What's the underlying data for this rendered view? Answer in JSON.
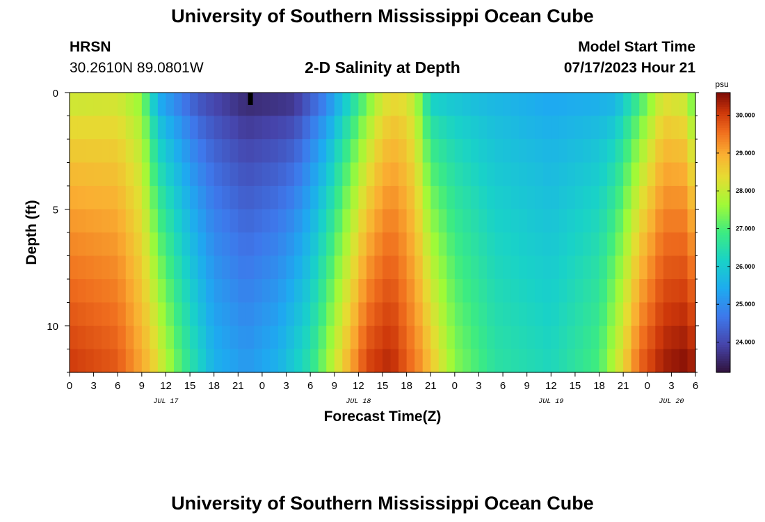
{
  "header": {
    "title": "University of Southern Mississippi Ocean Cube",
    "station": "HRSN",
    "coords": "30.2610N  89.0801W",
    "plot_title": "2-D Salinity at Depth",
    "model_start_label": "Model Start Time",
    "model_start_value": "07/17/2023 Hour 21"
  },
  "footer": {
    "title": "University of Southern Mississippi Ocean Cube"
  },
  "colors": {
    "background": "#ffffff",
    "axis": "#000000",
    "marker": "#000000"
  },
  "chart_data": {
    "type": "heatmap",
    "title": "2-D Salinity at Depth",
    "xlabel": "Forecast Time(Z)",
    "ylabel": "Depth (ft)",
    "x_range_hours": [
      0,
      78
    ],
    "x_ticks": [
      0,
      3,
      6,
      9,
      12,
      15,
      18,
      21,
      24,
      27,
      30,
      33,
      36,
      39,
      42,
      45,
      48,
      51,
      54,
      57,
      60,
      63,
      66,
      69,
      72,
      75,
      78
    ],
    "x_tick_labels": [
      "0",
      "3",
      "6",
      "9",
      "12",
      "15",
      "18",
      "21",
      "0",
      "3",
      "6",
      "9",
      "12",
      "15",
      "18",
      "21",
      "0",
      "3",
      "6",
      "9",
      "12",
      "15",
      "18",
      "21",
      "0",
      "3",
      "6"
    ],
    "date_labels": [
      {
        "label": "JUL 17",
        "hour": 12
      },
      {
        "label": "JUL 18",
        "hour": 36
      },
      {
        "label": "JUL 19",
        "hour": 60
      },
      {
        "label": "JUL 20",
        "hour": 75
      }
    ],
    "y_range_ft": [
      0,
      12
    ],
    "y_ticks": [
      0,
      5,
      10
    ],
    "depth_levels": [
      0.5,
      1.5,
      2.5,
      3.5,
      4.5,
      5.5,
      6.5,
      7.5,
      8.5,
      9.5,
      10.5,
      11.5
    ],
    "time_step_hours": 1,
    "salinity_model": {
      "description": "Salinity (psu) by forecast hour and depth; surface ~pattern with fresh intrusions centered near hour 23 and hour 59",
      "keyframes_surface": [
        [
          0,
          27.9
        ],
        [
          6,
          28.0
        ],
        [
          9,
          27.4
        ],
        [
          11,
          25.2
        ],
        [
          16,
          24.0
        ],
        [
          22,
          23.4
        ],
        [
          28,
          23.5
        ],
        [
          32,
          24.6
        ],
        [
          36,
          26.5
        ],
        [
          39,
          28.0
        ],
        [
          41,
          28.3
        ],
        [
          43,
          27.8
        ],
        [
          45,
          25.9
        ],
        [
          52,
          25.6
        ],
        [
          60,
          25.3
        ],
        [
          68,
          25.4
        ],
        [
          71,
          26.6
        ],
        [
          74,
          28.1
        ],
        [
          77,
          27.8
        ],
        [
          78,
          26.5
        ]
      ],
      "keyframes_bottom": [
        [
          0,
          30.1
        ],
        [
          6,
          29.8
        ],
        [
          10,
          28.8
        ],
        [
          14,
          27.0
        ],
        [
          18,
          25.6
        ],
        [
          22,
          25.2
        ],
        [
          26,
          25.6
        ],
        [
          30,
          26.6
        ],
        [
          34,
          28.6
        ],
        [
          37,
          30.0
        ],
        [
          40,
          30.3
        ],
        [
          44,
          29.2
        ],
        [
          48,
          27.5
        ],
        [
          53,
          26.6
        ],
        [
          60,
          26.3
        ],
        [
          66,
          27.0
        ],
        [
          69,
          28.5
        ],
        [
          71,
          29.7
        ],
        [
          74,
          30.4
        ],
        [
          77,
          30.6
        ],
        [
          78,
          30.3
        ]
      ]
    },
    "current_time_marker_hour": 22.5,
    "colorbar": {
      "unit": "psu",
      "range": [
        23.2,
        30.6
      ],
      "tick_values": [
        24.0,
        25.0,
        26.0,
        27.0,
        28.0,
        29.0,
        30.0
      ],
      "tick_labels": [
        "24.000",
        "25.000",
        "26.000",
        "27.000",
        "28.000",
        "29.000",
        "30.000"
      ]
    }
  }
}
